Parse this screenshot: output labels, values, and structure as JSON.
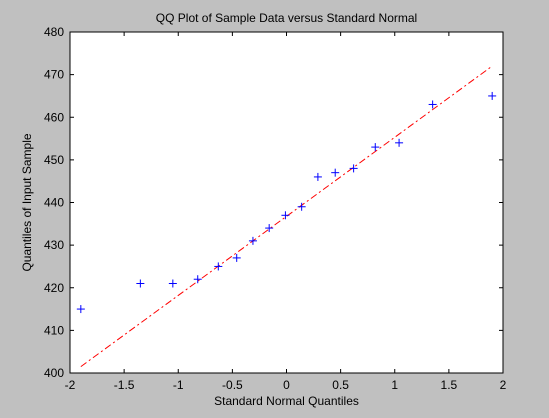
{
  "chart_data": {
    "type": "scatter",
    "title": "QQ Plot of Sample Data versus Standard Normal",
    "xlabel": "Standard Normal Quantiles",
    "ylabel": "Quantiles of Input Sample",
    "xlim": [
      -2,
      2
    ],
    "ylim": [
      400,
      480
    ],
    "x_ticks": [
      "-2",
      "-1.5",
      "-1",
      "-0.5",
      "0",
      "0.5",
      "1",
      "1.5",
      "2"
    ],
    "y_ticks": [
      "400",
      "410",
      "420",
      "430",
      "440",
      "450",
      "460",
      "470",
      "480"
    ],
    "grid": false,
    "marker": "+",
    "series": [
      {
        "x": [
          -1.9,
          -1.35,
          -1.05,
          -0.82,
          -0.63,
          -0.46,
          -0.31,
          -0.16,
          -0.01,
          0.14,
          0.29,
          0.45,
          0.62,
          0.82,
          1.04,
          1.35,
          1.9
        ],
        "y": [
          415,
          421,
          421,
          422,
          425,
          427,
          431,
          434,
          437,
          439,
          446,
          447,
          448,
          453,
          454,
          463,
          465
        ],
        "color": "#0000ff"
      }
    ],
    "reference_line": {
      "x": [
        -1.9,
        1.9
      ],
      "y": [
        401.5,
        472
      ],
      "color": "#ff0000",
      "style": "dash-dot"
    }
  }
}
